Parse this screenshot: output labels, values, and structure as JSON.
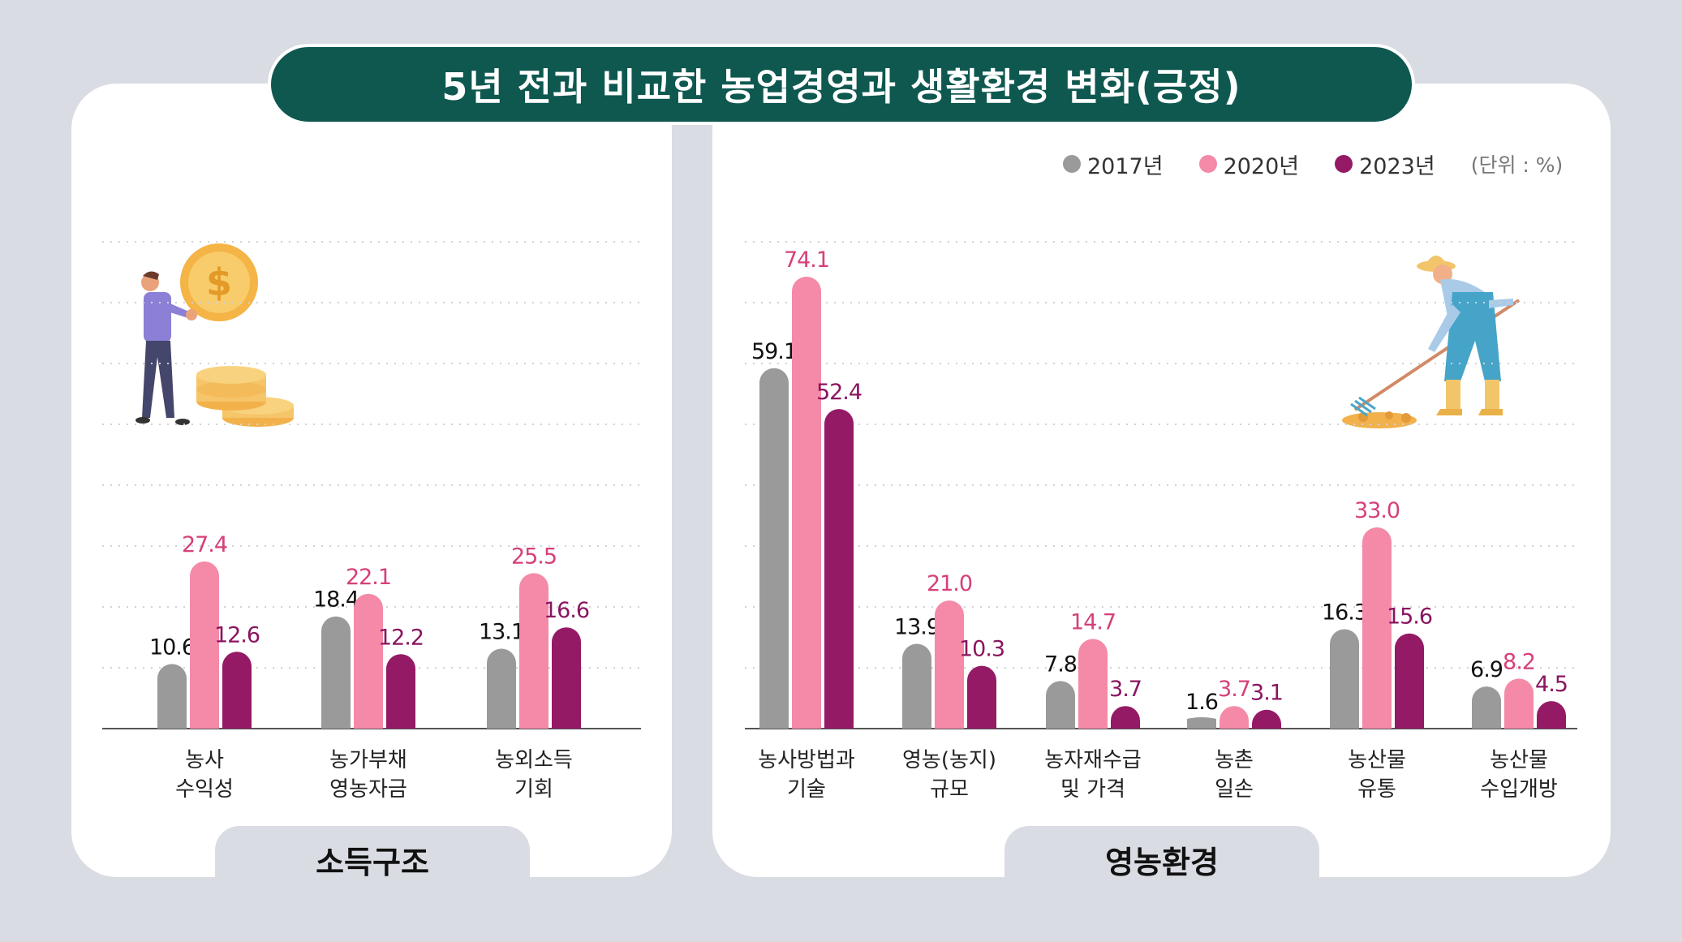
{
  "title": "5년 전과 비교한 농업경영과 생활환경 변화(긍정)",
  "legend": {
    "items": [
      {
        "label": "2017년",
        "color": "#9a9a9a"
      },
      {
        "label": "2020년",
        "color": "#f48aa7"
      },
      {
        "label": "2023년",
        "color": "#941a66"
      }
    ],
    "unit": "(단위 : %)"
  },
  "sections": {
    "left_tab": "소득구조",
    "right_tab": "영농환경"
  },
  "value_label_colors": {
    "2017년": "#111111",
    "2020년": "#d6407a",
    "2023년": "#8a1560"
  },
  "chart_data": [
    {
      "type": "bar",
      "title": "",
      "section": "소득구조",
      "categories": [
        [
          "농사",
          "수익성"
        ],
        [
          "농가부채",
          "영농자금"
        ],
        [
          "농외소득",
          "기회"
        ]
      ],
      "series": [
        {
          "name": "2017년",
          "values": [
            10.6,
            18.4,
            13.1
          ]
        },
        {
          "name": "2020년",
          "values": [
            27.4,
            22.1,
            25.5
          ]
        },
        {
          "name": "2023년",
          "values": [
            12.6,
            12.2,
            16.6
          ]
        }
      ],
      "unit": "%",
      "ylim": [
        0,
        80
      ],
      "grid": true
    },
    {
      "type": "bar",
      "title": "",
      "section": "영농환경",
      "categories": [
        [
          "농사방법과",
          "기술"
        ],
        [
          "영농(농지)",
          "규모"
        ],
        [
          "농자재수급",
          "및 가격"
        ],
        [
          "농촌",
          "일손"
        ],
        [
          "농산물",
          "유통"
        ],
        [
          "농산물",
          "수입개방"
        ]
      ],
      "series": [
        {
          "name": "2017년",
          "values": [
            59.1,
            13.9,
            7.8,
            1.6,
            16.3,
            6.9
          ]
        },
        {
          "name": "2020년",
          "values": [
            74.1,
            21.0,
            14.7,
            3.7,
            33.0,
            8.2
          ]
        },
        {
          "name": "2023년",
          "values": [
            52.4,
            10.3,
            3.7,
            3.1,
            15.6,
            4.5
          ]
        }
      ],
      "unit": "%",
      "ylim": [
        0,
        80
      ],
      "grid": true
    }
  ]
}
